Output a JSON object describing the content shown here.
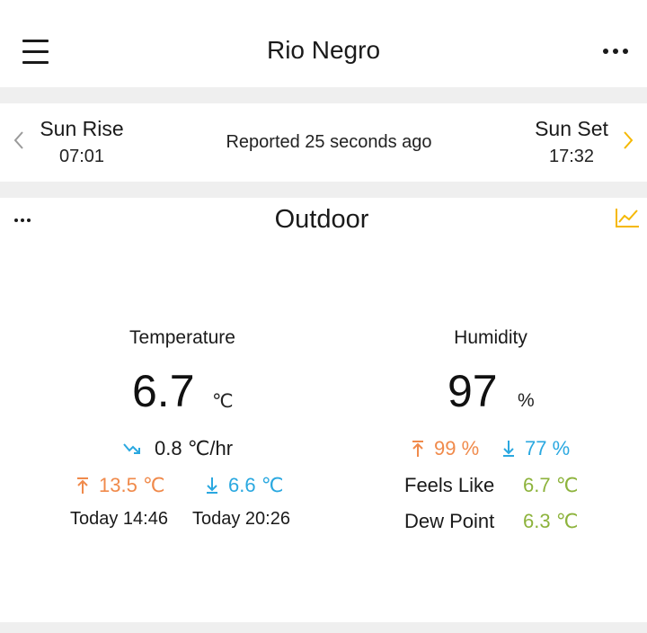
{
  "header": {
    "title": "Rio Negro"
  },
  "sun": {
    "rise_label": "Sun Rise",
    "rise_time": "07:01",
    "reported": "Reported 25 seconds ago",
    "set_label": "Sun Set",
    "set_time": "17:32"
  },
  "outdoor": {
    "title": "Outdoor",
    "temperature": {
      "label": "Temperature",
      "value": "6.7",
      "unit": "℃",
      "trend_value": "0.8 ℃/hr",
      "high": "13.5 ℃",
      "low": "6.6 ℃",
      "high_time": "Today 14:46",
      "low_time": "Today 20:26"
    },
    "humidity": {
      "label": "Humidity",
      "value": "97",
      "unit": "%",
      "high": "99 %",
      "low": "77 %",
      "feels_like_label": "Feels Like",
      "feels_like_value": "6.7 ℃",
      "dew_point_label": "Dew Point",
      "dew_point_value": "6.3 ℃"
    }
  },
  "colors": {
    "high": "#f08a4b",
    "low": "#2aa8e0",
    "derived": "#8db33c",
    "accent": "#f5b800",
    "divider": "#efefef"
  },
  "icons": {
    "menu": "hamburger-menu-icon",
    "more": "more-dots-icon",
    "prev": "chevron-left-icon",
    "next": "chevron-right-icon",
    "chart": "line-chart-icon",
    "trend": "trend-down-icon",
    "up": "arrow-up-icon",
    "down": "arrow-down-icon"
  }
}
